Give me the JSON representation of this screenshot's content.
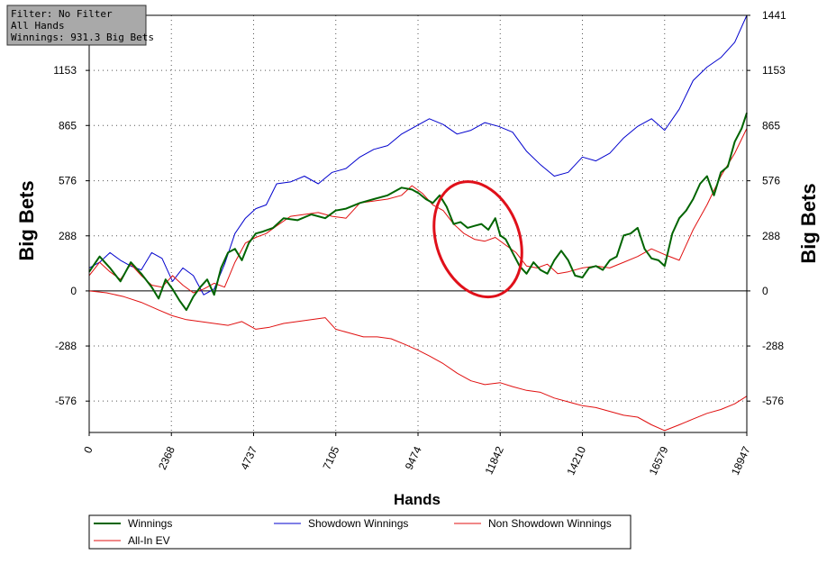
{
  "filter_box": {
    "filter_label": "Filter: No Filter",
    "hands_label": "All Hands",
    "winnings_label": "Winnings: 931.3 Big Bets"
  },
  "chart_data": {
    "type": "line",
    "xlabel": "Hands",
    "ylabel": "Big Bets",
    "ylabel_right": "Big Bets",
    "xlim": [
      0,
      18947
    ],
    "ylim": [
      -740,
      1441
    ],
    "x_ticks": [
      0,
      2368,
      4737,
      7105,
      9474,
      11842,
      14210,
      16579,
      18947
    ],
    "x_tick_labels": [
      "0",
      "2368",
      "4737",
      "7105",
      "9474",
      "11842",
      "14210",
      "16579",
      "18947"
    ],
    "y_ticks": [
      -576,
      -288,
      0,
      288,
      576,
      865,
      1153,
      1441
    ],
    "y_tick_labels": [
      "-576",
      "-288",
      "0",
      "288",
      "576",
      "865",
      "1153",
      "1441"
    ],
    "y_tick_labels_left": [
      "-576",
      "-288",
      "0",
      "288",
      "576",
      "865",
      "1153"
    ],
    "grid": true,
    "legend_position": "bottom",
    "annotation": {
      "type": "ellipse",
      "color": "#e0101a",
      "center": [
        11200,
        270
      ],
      "note": ""
    },
    "series": [
      {
        "name": "Winnings",
        "color": "#006400",
        "x": [
          0,
          300,
          600,
          900,
          1200,
          1500,
          1800,
          2000,
          2200,
          2400,
          2600,
          2800,
          3000,
          3200,
          3400,
          3600,
          3800,
          4000,
          4200,
          4400,
          4600,
          4800,
          5000,
          5300,
          5600,
          6000,
          6400,
          6800,
          7100,
          7400,
          7800,
          8200,
          8600,
          9000,
          9300,
          9500,
          9700,
          9900,
          10100,
          10300,
          10500,
          10700,
          10900,
          11100,
          11300,
          11500,
          11700,
          11842,
          12000,
          12200,
          12400,
          12600,
          12800,
          13000,
          13200,
          13400,
          13600,
          13800,
          14000,
          14210,
          14400,
          14600,
          14800,
          15000,
          15200,
          15400,
          15600,
          15800,
          16000,
          16200,
          16400,
          16579,
          16800,
          17000,
          17200,
          17400,
          17600,
          17800,
          18000,
          18200,
          18400,
          18600,
          18800,
          18947
        ],
        "values": [
          100,
          180,
          120,
          50,
          150,
          90,
          20,
          -40,
          60,
          10,
          -50,
          -100,
          -30,
          20,
          60,
          -20,
          120,
          200,
          220,
          160,
          250,
          300,
          310,
          330,
          380,
          370,
          400,
          380,
          420,
          430,
          460,
          480,
          500,
          540,
          530,
          510,
          480,
          460,
          500,
          440,
          350,
          360,
          330,
          340,
          350,
          320,
          380,
          290,
          270,
          200,
          130,
          90,
          150,
          110,
          90,
          160,
          210,
          160,
          80,
          70,
          120,
          130,
          110,
          160,
          180,
          290,
          300,
          330,
          220,
          170,
          160,
          130,
          300,
          380,
          420,
          480,
          560,
          600,
          500,
          620,
          650,
          780,
          850,
          931
        ]
      },
      {
        "name": "Showdown Winnings",
        "color": "#0000cd",
        "x": [
          0,
          300,
          600,
          900,
          1200,
          1500,
          1800,
          2100,
          2400,
          2700,
          3000,
          3300,
          3600,
          3900,
          4200,
          4500,
          4800,
          5100,
          5400,
          5800,
          6200,
          6600,
          7000,
          7400,
          7800,
          8200,
          8600,
          9000,
          9400,
          9800,
          10200,
          10600,
          11000,
          11400,
          11800,
          12200,
          12600,
          13000,
          13400,
          13800,
          14210,
          14600,
          15000,
          15400,
          15800,
          16200,
          16579,
          17000,
          17400,
          17800,
          18200,
          18600,
          18947
        ],
        "values": [
          120,
          150,
          200,
          160,
          130,
          110,
          200,
          170,
          50,
          120,
          80,
          -20,
          10,
          140,
          300,
          380,
          430,
          450,
          560,
          570,
          600,
          560,
          620,
          640,
          700,
          740,
          760,
          820,
          860,
          900,
          870,
          820,
          840,
          880,
          860,
          830,
          730,
          660,
          600,
          620,
          700,
          680,
          720,
          800,
          860,
          900,
          840,
          950,
          1100,
          1170,
          1220,
          1300,
          1441
        ]
      },
      {
        "name": "Non Showdown Winnings",
        "color": "#e01010",
        "x": [
          0,
          300,
          600,
          900,
          1200,
          1500,
          1800,
          2100,
          2400,
          2700,
          3000,
          3300,
          3600,
          3900,
          4200,
          4500,
          4800,
          5100,
          5400,
          5800,
          6200,
          6600,
          7000,
          7400,
          7800,
          8200,
          8600,
          9000,
          9300,
          9600,
          9900,
          10200,
          10500,
          10800,
          11100,
          11400,
          11700,
          12000,
          12300,
          12600,
          12900,
          13200,
          13500,
          13800,
          14210,
          14600,
          15000,
          15400,
          15800,
          16200,
          16579,
          17000,
          17400,
          17800,
          18200,
          18600,
          18947
        ],
        "values": [
          80,
          150,
          100,
          60,
          140,
          80,
          30,
          20,
          80,
          30,
          -10,
          10,
          40,
          20,
          150,
          250,
          280,
          300,
          340,
          390,
          400,
          410,
          390,
          380,
          460,
          470,
          480,
          500,
          550,
          510,
          450,
          420,
          350,
          300,
          270,
          260,
          280,
          240,
          200,
          130,
          120,
          140,
          90,
          100,
          120,
          130,
          120,
          150,
          180,
          220,
          190,
          160,
          320,
          450,
          600,
          720,
          850
        ]
      },
      {
        "name": "All-In EV",
        "color": "#e01010",
        "x": [
          0,
          500,
          1000,
          1500,
          2000,
          2400,
          2800,
          3200,
          3600,
          4000,
          4400,
          4800,
          5200,
          5600,
          6000,
          6400,
          6800,
          7100,
          7500,
          7900,
          8300,
          8700,
          9100,
          9474,
          9800,
          10200,
          10600,
          11000,
          11400,
          11842,
          12200,
          12600,
          13000,
          13400,
          13800,
          14210,
          14600,
          15000,
          15400,
          15800,
          16200,
          16579,
          17000,
          17400,
          17800,
          18200,
          18600,
          18947
        ],
        "values": [
          0,
          -10,
          -30,
          -60,
          -100,
          -130,
          -150,
          -160,
          -170,
          -180,
          -160,
          -200,
          -190,
          -170,
          -160,
          -150,
          -140,
          -200,
          -220,
          -240,
          -240,
          -250,
          -280,
          -310,
          -340,
          -380,
          -430,
          -470,
          -490,
          -480,
          -500,
          -520,
          -530,
          -560,
          -580,
          -600,
          -610,
          -630,
          -650,
          -660,
          -700,
          -730,
          -700,
          -670,
          -640,
          -620,
          -590,
          -550
        ]
      }
    ]
  }
}
